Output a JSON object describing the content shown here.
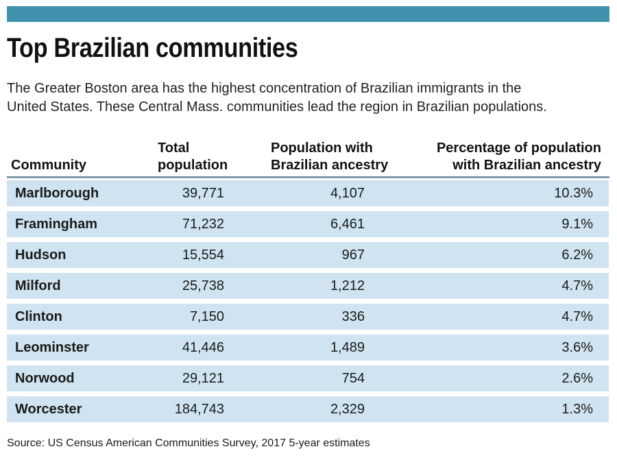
{
  "page": {
    "title": "Top Brazilian communities",
    "intro": "The Greater Boston area has the highest concentration of Brazilian immigrants in the United States. These Central Mass. communities lead the region in Brazilian populations.",
    "source": "Source: US Census American Communities Survey, 2017 5-year estimates"
  },
  "colors": {
    "accent_teal": "#4193ad",
    "row_blue": "#cfe4f0",
    "header_rule": "#7d9aab",
    "text": "#1a1a1a"
  },
  "table": {
    "headers": {
      "community": "Community",
      "total": "Total\npopulation",
      "ancestry": "Population with\nBrazilian ancestry",
      "percentage": "Percentage of population\nwith Brazilian ancestry"
    },
    "rows": [
      {
        "community": "Marlborough",
        "total": "39,771",
        "ancestry": "4,107",
        "percentage": "10.3%"
      },
      {
        "community": "Framingham",
        "total": "71,232",
        "ancestry": "6,461",
        "percentage": "9.1%"
      },
      {
        "community": "Hudson",
        "total": "15,554",
        "ancestry": "967",
        "percentage": "6.2%"
      },
      {
        "community": "Milford",
        "total": "25,738",
        "ancestry": "1,212",
        "percentage": "4.7%"
      },
      {
        "community": "Clinton",
        "total": "7,150",
        "ancestry": "336",
        "percentage": "4.7%"
      },
      {
        "community": "Leominster",
        "total": "41,446",
        "ancestry": "1,489",
        "percentage": "3.6%"
      },
      {
        "community": "Norwood",
        "total": "29,121",
        "ancestry": "754",
        "percentage": "2.6%"
      },
      {
        "community": "Worcester",
        "total": "184,743",
        "ancestry": "2,329",
        "percentage": "1.3%"
      }
    ]
  },
  "chart_data": {
    "type": "table",
    "title": "Top Brazilian communities",
    "subtitle": "The Greater Boston area has the highest concentration of Brazilian immigrants in the United States. These Central Mass. communities lead the region in Brazilian populations.",
    "columns": [
      "Community",
      "Total population",
      "Population with Brazilian ancestry",
      "Percentage of population with Brazilian ancestry"
    ],
    "rows": [
      [
        "Marlborough",
        39771,
        4107,
        10.3
      ],
      [
        "Framingham",
        71232,
        6461,
        9.1
      ],
      [
        "Hudson",
        15554,
        967,
        6.2
      ],
      [
        "Milford",
        25738,
        1212,
        4.7
      ],
      [
        "Clinton",
        7150,
        336,
        4.7
      ],
      [
        "Leominster",
        41446,
        1489,
        3.6
      ],
      [
        "Norwood",
        29121,
        754,
        2.6
      ],
      [
        "Worcester",
        184743,
        2329,
        1.3
      ]
    ],
    "percentage_unit": "%",
    "source": "Source: US Census American Communities Survey, 2017 5-year estimates"
  }
}
